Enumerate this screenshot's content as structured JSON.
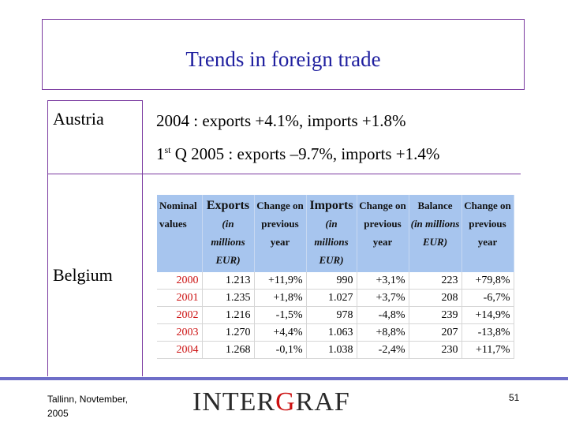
{
  "title": "Trends in foreign trade",
  "austria": {
    "label": "Austria",
    "line1": "2004 :  exports +4.1%, imports +1.8%",
    "line2_prefix": "1",
    "line2_sup": "st",
    "line2_rest": " Q 2005 : exports –9.7%, imports +1.4%"
  },
  "belgium": {
    "label": "Belgium",
    "table": {
      "headers": [
        {
          "main": "Nominal values",
          "sub": ""
        },
        {
          "main": "Exports",
          "sub": "(in millions EUR)"
        },
        {
          "main": "Change on previous year",
          "sub": ""
        },
        {
          "main": "Imports",
          "sub": "(in millions EUR)"
        },
        {
          "main": "Change on previous year",
          "sub": ""
        },
        {
          "main": "Balance",
          "sub": "(in millions EUR)"
        },
        {
          "main": "Change on previous year",
          "sub": ""
        }
      ],
      "rows": [
        [
          "2000",
          "1.213",
          "+11,9%",
          "990",
          "+3,1%",
          "223",
          "+79,8%"
        ],
        [
          "2001",
          "1.235",
          "+1,8%",
          "1.027",
          "+3,7%",
          "208",
          "-6,7%"
        ],
        [
          "2002",
          "1.216",
          "-1,5%",
          "978",
          "-4,8%",
          "239",
          "+14,9%"
        ],
        [
          "2003",
          "1.270",
          "+4,4%",
          "1.063",
          "+8,8%",
          "207",
          "-13,8%"
        ],
        [
          "2004",
          "1.268",
          "-0,1%",
          "1.038",
          "-2,4%",
          "230",
          "+11,7%"
        ]
      ]
    }
  },
  "footer": {
    "location": "Tallinn, Novtember, 2005",
    "logo_prefix": "INTER",
    "logo_accent": "G",
    "logo_suffix": "RAF",
    "page": "51"
  },
  "colors": {
    "title": "#1f1f9f",
    "border": "#7a3aa0",
    "table_header": "#a7c5ee",
    "year": "#cc1111",
    "footer_line": "#6e6ec8"
  }
}
